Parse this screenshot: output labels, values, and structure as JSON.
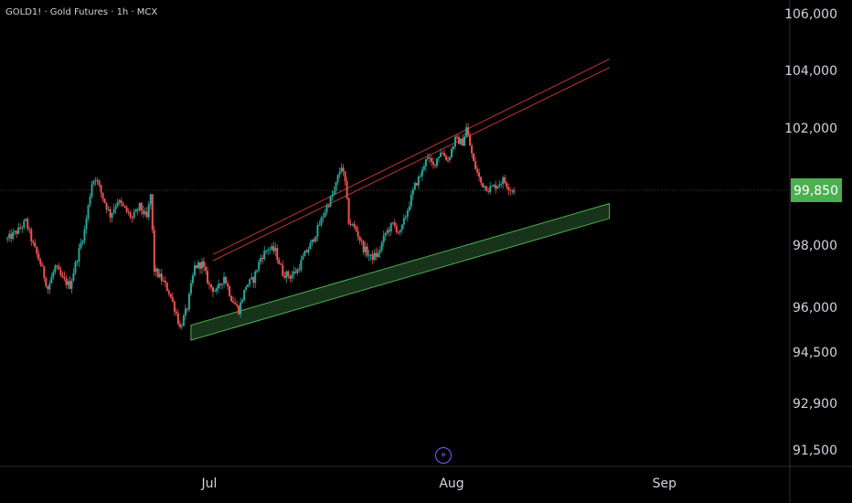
{
  "header": {
    "title": "GOLD1! · Gold Futures · 1h · MCX"
  },
  "colors": {
    "background": "#000000",
    "up": "#26a69a",
    "down": "#ef5350",
    "channel_upper": "#c2362f",
    "channel_lower": "#4caf50",
    "channel_lower_fill": "#1b3d1e",
    "price_badge": "#4caf50",
    "axis_border": "#2a2e39"
  },
  "chart_data": {
    "type": "candlestick",
    "symbol": "GOLD1!",
    "name": "Gold Futures",
    "interval": "1h",
    "exchange": "MCX",
    "ylim": [
      90500,
      106500
    ],
    "y_ticks": [
      {
        "value": 106000,
        "label": "106,000"
      },
      {
        "value": 104000,
        "label": "104,000"
      },
      {
        "value": 102000,
        "label": "102,000"
      },
      {
        "value": 98000,
        "label": "98,000"
      },
      {
        "value": 96000,
        "label": "96,000"
      },
      {
        "value": 94500,
        "label": "94,500"
      },
      {
        "value": 92900,
        "label": "92,900"
      },
      {
        "value": 91500,
        "label": "91,500"
      }
    ],
    "x_ticks": [
      "Jul",
      "Aug",
      "Sep"
    ],
    "last_price": {
      "value": 99850,
      "label": "99,850"
    },
    "close_path": [
      [
        0,
        98200
      ],
      [
        3,
        98500
      ],
      [
        5,
        98800
      ],
      [
        7,
        98000
      ],
      [
        9,
        97400
      ],
      [
        11,
        96600
      ],
      [
        13,
        97300
      ],
      [
        15,
        96900
      ],
      [
        17,
        96700
      ],
      [
        19,
        97600
      ],
      [
        21,
        98500
      ],
      [
        22,
        99300
      ],
      [
        23,
        100100
      ],
      [
        24,
        100300
      ],
      [
        26,
        99600
      ],
      [
        28,
        99000
      ],
      [
        30,
        99500
      ],
      [
        32,
        99200
      ],
      [
        34,
        98900
      ],
      [
        36,
        99300
      ],
      [
        38,
        98900
      ],
      [
        39,
        99700
      ],
      [
        40,
        97200
      ],
      [
        42,
        96900
      ],
      [
        44,
        96500
      ],
      [
        46,
        95800
      ],
      [
        47,
        95300
      ],
      [
        49,
        96000
      ],
      [
        51,
        97300
      ],
      [
        53,
        97400
      ],
      [
        55,
        96700
      ],
      [
        57,
        96500
      ],
      [
        59,
        97000
      ],
      [
        61,
        96300
      ],
      [
        63,
        95900
      ],
      [
        65,
        96700
      ],
      [
        67,
        96900
      ],
      [
        69,
        97600
      ],
      [
        71,
        97900
      ],
      [
        73,
        97800
      ],
      [
        75,
        97100
      ],
      [
        77,
        97000
      ],
      [
        79,
        97200
      ],
      [
        81,
        97700
      ],
      [
        83,
        98100
      ],
      [
        85,
        98700
      ],
      [
        87,
        99300
      ],
      [
        89,
        99800
      ],
      [
        90,
        100300
      ],
      [
        91,
        100700
      ],
      [
        92,
        100100
      ],
      [
        93,
        98800
      ],
      [
        95,
        98500
      ],
      [
        97,
        97900
      ],
      [
        99,
        97600
      ],
      [
        101,
        97700
      ],
      [
        103,
        98400
      ],
      [
        105,
        98700
      ],
      [
        107,
        98400
      ],
      [
        109,
        99200
      ],
      [
        111,
        100000
      ],
      [
        113,
        100500
      ],
      [
        114,
        101000
      ],
      [
        116,
        100700
      ],
      [
        118,
        101200
      ],
      [
        120,
        100900
      ],
      [
        122,
        101600
      ],
      [
        124,
        101500
      ],
      [
        125,
        102000
      ],
      [
        126,
        101400
      ],
      [
        127,
        100800
      ],
      [
        129,
        100100
      ],
      [
        131,
        99900
      ],
      [
        133,
        100000
      ],
      [
        135,
        100200
      ],
      [
        137,
        99900
      ],
      [
        138,
        99850
      ]
    ],
    "annotations": [
      {
        "type": "channel_upper",
        "color": "red",
        "lines": [
          {
            "from": [
              56,
              97700
            ],
            "to": [
              164,
              104400
            ]
          },
          {
            "from": [
              56,
              97500
            ],
            "to": [
              164,
              104100
            ]
          }
        ]
      },
      {
        "type": "channel_lower",
        "color": "green",
        "upper": {
          "from": [
            50,
            95400
          ],
          "to": [
            164,
            99400
          ]
        },
        "lower": {
          "from": [
            50,
            94900
          ],
          "to": [
            164,
            98900
          ]
        }
      }
    ],
    "x_tick_index": {
      "Jul": 55,
      "Aug": 121,
      "Sep": 179
    }
  }
}
